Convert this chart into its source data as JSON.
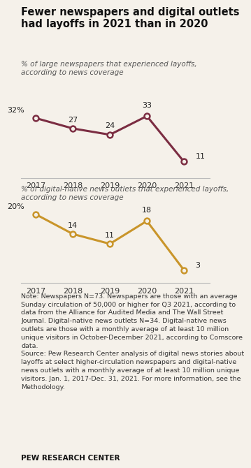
{
  "title": "Fewer newspapers and digital outlets\nhad layoffs in 2021 than in 2020",
  "subtitle1": "% of large newspapers that experienced layoffs,\naccording to news coverage",
  "subtitle2": "% of digital-native news outlets that experienced layoffs,\naccording to news coverage",
  "years": [
    2017,
    2018,
    2019,
    2020,
    2021
  ],
  "newspaper_values": [
    32,
    27,
    24,
    33,
    11
  ],
  "digital_values": [
    20,
    14,
    11,
    18,
    3
  ],
  "newspaper_color": "#7b2d42",
  "digital_color": "#c9952a",
  "note_text": "Note: Newspapers N=73. Newspapers are those with an average\nSunday circulation of 50,000 or higher for Q3 2021, according to\ndata from the Alliance for Audited Media and The Wall Street\nJournal. Digital-native news outlets N=34. Digital-native news\noutlets are those with a monthly average of at least 10 million\nunique visitors in October-December 2021, according to Comscore\ndata.\nSource: Pew Research Center analysis of digital news stories about\nlayoffs at select higher-circulation newspapers and digital-native\nnews outlets with a monthly average of at least 10 million unique\nvisitors. Jan. 1, 2017-Dec. 31, 2021. For more information, see the\nMethodology.",
  "footer": "PEW RESEARCH CENTER",
  "background_color": "#f5f1ea",
  "title_fontsize": 10.5,
  "subtitle_fontsize": 7.5,
  "label_fontsize": 8,
  "tick_fontsize": 8,
  "note_fontsize": 6.8,
  "footer_fontsize": 7.5,
  "line_width": 2.2,
  "marker_size": 32,
  "marker_lw": 1.8
}
